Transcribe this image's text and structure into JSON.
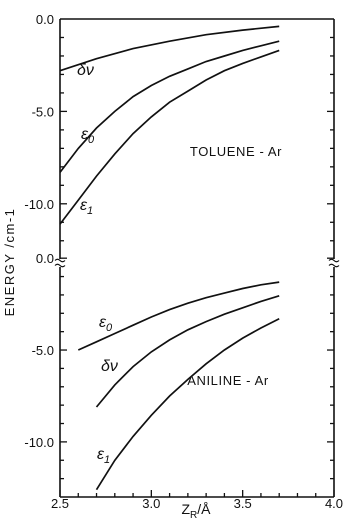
{
  "chart_data": [
    {
      "type": "line",
      "panel": "top",
      "annotation": "TOLUENE - Ar",
      "xlim": [
        2.5,
        4.0
      ],
      "ylim": [
        -12.5,
        0.0
      ],
      "y_ticks": [
        0.0,
        -5.0,
        -10.0
      ],
      "y_tick_labels": [
        "0.0",
        "-5.0",
        "-10.0"
      ],
      "series": [
        {
          "name": "δν",
          "x": [
            2.5,
            2.7,
            2.9,
            3.1,
            3.3,
            3.5,
            3.7
          ],
          "values": [
            -2.8,
            -2.15,
            -1.6,
            -1.2,
            -0.85,
            -0.6,
            -0.4
          ]
        },
        {
          "name": "ε0",
          "x": [
            2.5,
            2.6,
            2.7,
            2.8,
            2.9,
            3.0,
            3.1,
            3.2,
            3.3,
            3.4,
            3.5,
            3.6,
            3.7
          ],
          "values": [
            -8.3,
            -7.0,
            -5.9,
            -5.0,
            -4.2,
            -3.6,
            -3.1,
            -2.7,
            -2.3,
            -2.0,
            -1.7,
            -1.45,
            -1.2
          ]
        },
        {
          "name": "ε1",
          "x": [
            2.5,
            2.6,
            2.7,
            2.8,
            2.9,
            3.0,
            3.1,
            3.2,
            3.3,
            3.4,
            3.5,
            3.6,
            3.7
          ],
          "values": [
            -11.1,
            -9.8,
            -8.5,
            -7.3,
            -6.2,
            -5.3,
            -4.5,
            -3.9,
            -3.3,
            -2.8,
            -2.4,
            -2.05,
            -1.7
          ]
        }
      ]
    },
    {
      "type": "line",
      "panel": "bottom",
      "annotation": "ANILINE - Ar",
      "xlim": [
        2.5,
        4.0
      ],
      "ylim": [
        -13.0,
        0.5
      ],
      "x_ticks": [
        2.5,
        3.0,
        3.5,
        4.0
      ],
      "x_tick_labels": [
        "2.5",
        "3.0",
        "3.5",
        "4.0"
      ],
      "y_ticks": [
        0.0,
        -5.0,
        -10.0
      ],
      "y_tick_labels": [
        "0.0",
        "-5.0",
        "-10.0"
      ],
      "series": [
        {
          "name": "ε0",
          "x": [
            2.6,
            2.7,
            2.8,
            2.9,
            3.0,
            3.1,
            3.2,
            3.3,
            3.4,
            3.5,
            3.6,
            3.7
          ],
          "values": [
            -5.0,
            -4.55,
            -4.1,
            -3.65,
            -3.2,
            -2.8,
            -2.45,
            -2.15,
            -1.9,
            -1.65,
            -1.45,
            -1.3
          ]
        },
        {
          "name": "δν",
          "x": [
            2.7,
            2.8,
            2.9,
            3.0,
            3.1,
            3.2,
            3.3,
            3.4,
            3.5,
            3.6,
            3.7
          ],
          "values": [
            -8.1,
            -6.9,
            -5.9,
            -5.1,
            -4.45,
            -3.9,
            -3.45,
            -3.05,
            -2.7,
            -2.35,
            -2.05
          ]
        },
        {
          "name": "ε1",
          "x": [
            2.7,
            2.8,
            2.9,
            3.0,
            3.1,
            3.2,
            3.3,
            3.4,
            3.5,
            3.6,
            3.7
          ],
          "values": [
            -12.6,
            -11.0,
            -9.7,
            -8.55,
            -7.5,
            -6.6,
            -5.75,
            -5.0,
            -4.35,
            -3.8,
            -3.3
          ]
        }
      ]
    }
  ],
  "ylabel": "ENERGY /cm-1",
  "xlabel": "Z",
  "xlabel_sub": "R",
  "xlabel_unit": "/Å"
}
